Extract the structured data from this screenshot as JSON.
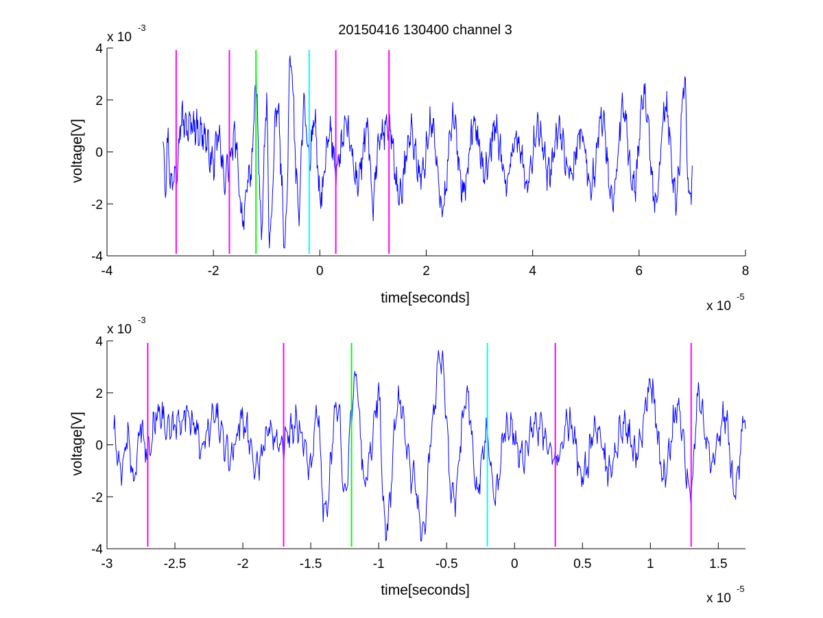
{
  "chart_data": [
    {
      "type": "line",
      "title": "20150416 130400 channel 3",
      "xlabel": "time[seconds]",
      "ylabel": "voltage[V]",
      "x_multiplier_label": "x 10",
      "x_multiplier_exp": "-5",
      "y_multiplier_label": "x 10",
      "y_multiplier_exp": "-3",
      "xlim": [
        -4,
        8
      ],
      "ylim": [
        -4,
        4
      ],
      "x_unit_scale": 1e-05,
      "y_unit_scale": 0.001,
      "x_ticks": [
        -4,
        -2,
        0,
        2,
        4,
        6,
        8
      ],
      "x_tick_labels": [
        "-4",
        "-2",
        "0",
        "2",
        "4",
        "6",
        "8"
      ],
      "y_ticks": [
        -4,
        -2,
        0,
        2,
        4
      ],
      "y_tick_labels": [
        "-4",
        "-2",
        "0",
        "2",
        "4"
      ],
      "grid": false,
      "series": [
        {
          "color": "#0000ff",
          "x_start": -2.95,
          "x_end": 7.0,
          "n": 1000,
          "anchors": [
            [
              -2.95,
              0.6
            ],
            [
              -2.9,
              -1.1
            ],
            [
              -2.85,
              0.5
            ],
            [
              -2.8,
              -1.3
            ],
            [
              -2.7,
              -0.6
            ],
            [
              -2.6,
              1.3
            ],
            [
              -2.5,
              0.9
            ],
            [
              -2.4,
              1.1
            ],
            [
              -2.2,
              0.7
            ],
            [
              -2.0,
              -0.4
            ],
            [
              -1.9,
              0.6
            ],
            [
              -1.8,
              -1.0
            ],
            [
              -1.7,
              -0.4
            ],
            [
              -1.6,
              0.5
            ],
            [
              -1.45,
              -2.5
            ],
            [
              -1.3,
              -0.8
            ],
            [
              -1.2,
              2.5
            ],
            [
              -1.1,
              -2.9
            ],
            [
              -1.0,
              1.8
            ],
            [
              -0.95,
              -3.3
            ],
            [
              -0.8,
              1.7
            ],
            [
              -0.65,
              -3.4
            ],
            [
              -0.55,
              3.5
            ],
            [
              -0.4,
              -2.2
            ],
            [
              -0.3,
              1.8
            ],
            [
              -0.2,
              -0.3
            ],
            [
              -0.1,
              1.3
            ],
            [
              0.0,
              -1.8
            ],
            [
              0.2,
              0.7
            ],
            [
              0.3,
              -0.6
            ],
            [
              0.5,
              0.9
            ],
            [
              0.7,
              -1.1
            ],
            [
              0.9,
              0.8
            ],
            [
              1.0,
              -2.2
            ],
            [
              1.1,
              0.4
            ],
            [
              1.3,
              1.0
            ],
            [
              1.5,
              -1.8
            ],
            [
              1.7,
              0.8
            ],
            [
              1.9,
              -1.0
            ],
            [
              2.1,
              1.1
            ],
            [
              2.3,
              -2.2
            ],
            [
              2.5,
              1.2
            ],
            [
              2.7,
              -1.4
            ],
            [
              2.9,
              1.0
            ],
            [
              3.1,
              -0.7
            ],
            [
              3.3,
              0.9
            ],
            [
              3.5,
              -1.1
            ],
            [
              3.7,
              0.6
            ],
            [
              3.9,
              -1.2
            ],
            [
              4.1,
              1.0
            ],
            [
              4.3,
              -0.9
            ],
            [
              4.5,
              0.8
            ],
            [
              4.7,
              -1.0
            ],
            [
              4.9,
              0.7
            ],
            [
              5.1,
              -1.2
            ],
            [
              5.3,
              1.3
            ],
            [
              5.5,
              -1.9
            ],
            [
              5.7,
              1.6
            ],
            [
              5.9,
              -1.4
            ],
            [
              6.1,
              2.1
            ],
            [
              6.3,
              -2.0
            ],
            [
              6.5,
              1.7
            ],
            [
              6.7,
              -1.8
            ],
            [
              6.85,
              2.7
            ],
            [
              6.95,
              -2.0
            ],
            [
              7.0,
              -1.0
            ]
          ]
        }
      ],
      "vlines": [
        {
          "x": -2.7,
          "color": "#ff00ff"
        },
        {
          "x": -1.7,
          "color": "#ff00ff"
        },
        {
          "x": -1.2,
          "color": "#00ff00"
        },
        {
          "x": -0.2,
          "color": "#00ffff"
        },
        {
          "x": 0.3,
          "color": "#ff00ff"
        },
        {
          "x": 1.3,
          "color": "#ff00ff"
        }
      ]
    },
    {
      "type": "line",
      "title": "",
      "xlabel": "time[seconds]",
      "ylabel": "voltage[V]",
      "x_multiplier_label": "x 10",
      "x_multiplier_exp": "-5",
      "y_multiplier_label": "x 10",
      "y_multiplier_exp": "-3",
      "xlim": [
        -3.0,
        1.7
      ],
      "ylim": [
        -4,
        4
      ],
      "x_unit_scale": 1e-05,
      "y_unit_scale": 0.001,
      "x_ticks": [
        -3,
        -2.5,
        -2,
        -1.5,
        -1,
        -0.5,
        0,
        0.5,
        1,
        1.5
      ],
      "x_tick_labels": [
        "-3",
        "-2.5",
        "-2",
        "-1.5",
        "-1",
        "-0.5",
        "0",
        "0.5",
        "1",
        "1.5"
      ],
      "y_ticks": [
        -4,
        -2,
        0,
        2,
        4
      ],
      "y_tick_labels": [
        "-4",
        "-2",
        "0",
        "2",
        "4"
      ],
      "grid": false,
      "series": [
        {
          "color": "#0000ff",
          "x_start": -2.95,
          "x_end": 1.7,
          "n": 900,
          "anchors": [
            [
              -2.95,
              0.5
            ],
            [
              -2.9,
              -1.2
            ],
            [
              -2.85,
              0.4
            ],
            [
              -2.8,
              -1.4
            ],
            [
              -2.75,
              0.6
            ],
            [
              -2.7,
              -0.3
            ],
            [
              -2.62,
              1.4
            ],
            [
              -2.55,
              0.5
            ],
            [
              -2.4,
              1.2
            ],
            [
              -2.3,
              0.0
            ],
            [
              -2.2,
              1.1
            ],
            [
              -2.1,
              -0.5
            ],
            [
              -2.0,
              1.0
            ],
            [
              -1.9,
              -0.8
            ],
            [
              -1.8,
              0.6
            ],
            [
              -1.7,
              0.1
            ],
            [
              -1.6,
              0.8
            ],
            [
              -1.5,
              -0.8
            ],
            [
              -1.45,
              1.2
            ],
            [
              -1.4,
              -2.7
            ],
            [
              -1.3,
              1.5
            ],
            [
              -1.25,
              -1.6
            ],
            [
              -1.17,
              2.5
            ],
            [
              -1.1,
              -1.4
            ],
            [
              -1.0,
              1.8
            ],
            [
              -0.95,
              -3.4
            ],
            [
              -0.85,
              1.7
            ],
            [
              -0.75,
              -1.2
            ],
            [
              -0.67,
              -3.5
            ],
            [
              -0.6,
              1.2
            ],
            [
              -0.55,
              3.5
            ],
            [
              -0.45,
              -2.2
            ],
            [
              -0.35,
              1.9
            ],
            [
              -0.28,
              -1.6
            ],
            [
              -0.2,
              0.5
            ],
            [
              -0.15,
              -1.9
            ],
            [
              -0.05,
              0.9
            ],
            [
              0.05,
              -0.5
            ],
            [
              0.15,
              0.8
            ],
            [
              0.3,
              -0.6
            ],
            [
              0.4,
              0.9
            ],
            [
              0.5,
              -1.2
            ],
            [
              0.6,
              0.6
            ],
            [
              0.7,
              -1.1
            ],
            [
              0.8,
              0.7
            ],
            [
              0.9,
              -0.4
            ],
            [
              1.0,
              2.3
            ],
            [
              1.1,
              -1.3
            ],
            [
              1.2,
              1.5
            ],
            [
              1.3,
              -2.0
            ],
            [
              1.35,
              2.0
            ],
            [
              1.45,
              -0.6
            ],
            [
              1.55,
              1.2
            ],
            [
              1.62,
              -1.8
            ],
            [
              1.7,
              1.2
            ]
          ]
        }
      ],
      "vlines": [
        {
          "x": -2.7,
          "color": "#ff00ff"
        },
        {
          "x": -1.7,
          "color": "#ff00ff"
        },
        {
          "x": -1.2,
          "color": "#00ff00"
        },
        {
          "x": -0.2,
          "color": "#00ffff"
        },
        {
          "x": 0.3,
          "color": "#ff00ff"
        },
        {
          "x": 1.3,
          "color": "#ff00ff"
        }
      ]
    }
  ]
}
